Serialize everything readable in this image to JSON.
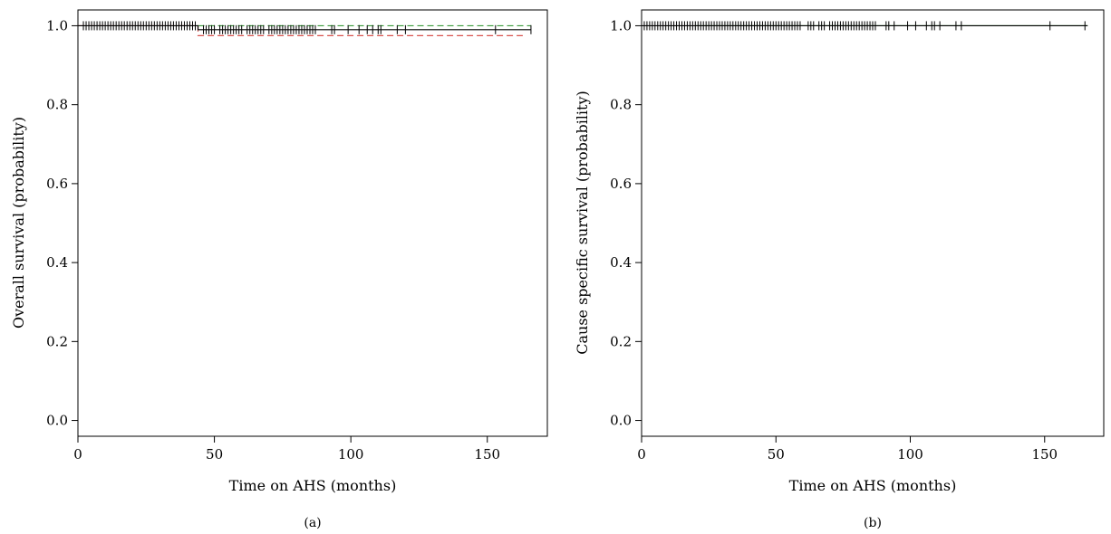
{
  "chart_data": [
    {
      "type": "line",
      "panel_label": "(a)",
      "title": "",
      "xlabel": "Time on AHS (months)",
      "ylabel": "Overall survival (probability)",
      "xlim": [
        0,
        172
      ],
      "ylim": [
        -0.04,
        1.04
      ],
      "xticks": [
        0,
        50,
        100,
        150
      ],
      "yticks": [
        0.0,
        0.2,
        0.4,
        0.6,
        0.8,
        1.0
      ],
      "grid": false,
      "series": [
        {
          "color": "#000000",
          "style": "solid",
          "x": [
            0,
            44,
            44,
            166
          ],
          "y": [
            1.0,
            1.0,
            0.99,
            0.99
          ],
          "censor_times": [
            2,
            3,
            4,
            5,
            6,
            7,
            8,
            9,
            10,
            11,
            12,
            13,
            14,
            15,
            16,
            17,
            18,
            19,
            20,
            21,
            22,
            23,
            24,
            25,
            26,
            27,
            28,
            29,
            30,
            31,
            32,
            33,
            34,
            35,
            36,
            37,
            38,
            39,
            40,
            41,
            42,
            43,
            46,
            47,
            48,
            49,
            50,
            52,
            53,
            54,
            55,
            56,
            57,
            58,
            59,
            60,
            62,
            63,
            64,
            65,
            66,
            67,
            68,
            70,
            71,
            72,
            73,
            74,
            75,
            76,
            77,
            78,
            79,
            80,
            81,
            82,
            83,
            84,
            85,
            86,
            87,
            93,
            94,
            99,
            103,
            106,
            108,
            110,
            111,
            117,
            120,
            153,
            166
          ]
        },
        {
          "color": "#d9534f",
          "style": "dashed",
          "x": [
            0,
            44,
            44,
            163
          ],
          "y": [
            1.0,
            1.0,
            0.975,
            0.975
          ],
          "censor_times": []
        },
        {
          "color": "#3a9a3a",
          "style": "dashed",
          "x": [
            44,
            166
          ],
          "y": [
            1.0,
            1.0
          ],
          "censor_times": []
        }
      ]
    },
    {
      "type": "line",
      "panel_label": "(b)",
      "title": "",
      "xlabel": "Time on AHS (months)",
      "ylabel": "Cause specific survival (probability)",
      "xlim": [
        0,
        172
      ],
      "ylim": [
        -0.04,
        1.04
      ],
      "xticks": [
        0,
        50,
        100,
        150
      ],
      "yticks": [
        0.0,
        0.2,
        0.4,
        0.6,
        0.8,
        1.0
      ],
      "grid": false,
      "series": [
        {
          "color": "#000000",
          "style": "solid",
          "x": [
            0,
            166
          ],
          "y": [
            1.0,
            1.0
          ],
          "censor_times": [
            1,
            2,
            3,
            4,
            5,
            6,
            7,
            8,
            9,
            10,
            11,
            12,
            13,
            14,
            15,
            16,
            17,
            18,
            19,
            20,
            21,
            22,
            23,
            24,
            25,
            26,
            27,
            28,
            29,
            30,
            31,
            32,
            33,
            34,
            35,
            36,
            37,
            38,
            39,
            40,
            41,
            42,
            43,
            44,
            45,
            46,
            47,
            48,
            49,
            50,
            51,
            52,
            53,
            54,
            55,
            56,
            57,
            58,
            59,
            62,
            63,
            64,
            66,
            67,
            68,
            70,
            71,
            72,
            73,
            74,
            75,
            76,
            77,
            78,
            79,
            80,
            81,
            82,
            83,
            84,
            85,
            86,
            87,
            91,
            92,
            94,
            99,
            102,
            106,
            108,
            109,
            111,
            117,
            119,
            152,
            165
          ]
        },
        {
          "color": "#3a9a3a",
          "style": "solid",
          "x": [
            20,
            166
          ],
          "y": [
            1.0,
            1.0
          ],
          "censor_times": []
        }
      ]
    }
  ]
}
